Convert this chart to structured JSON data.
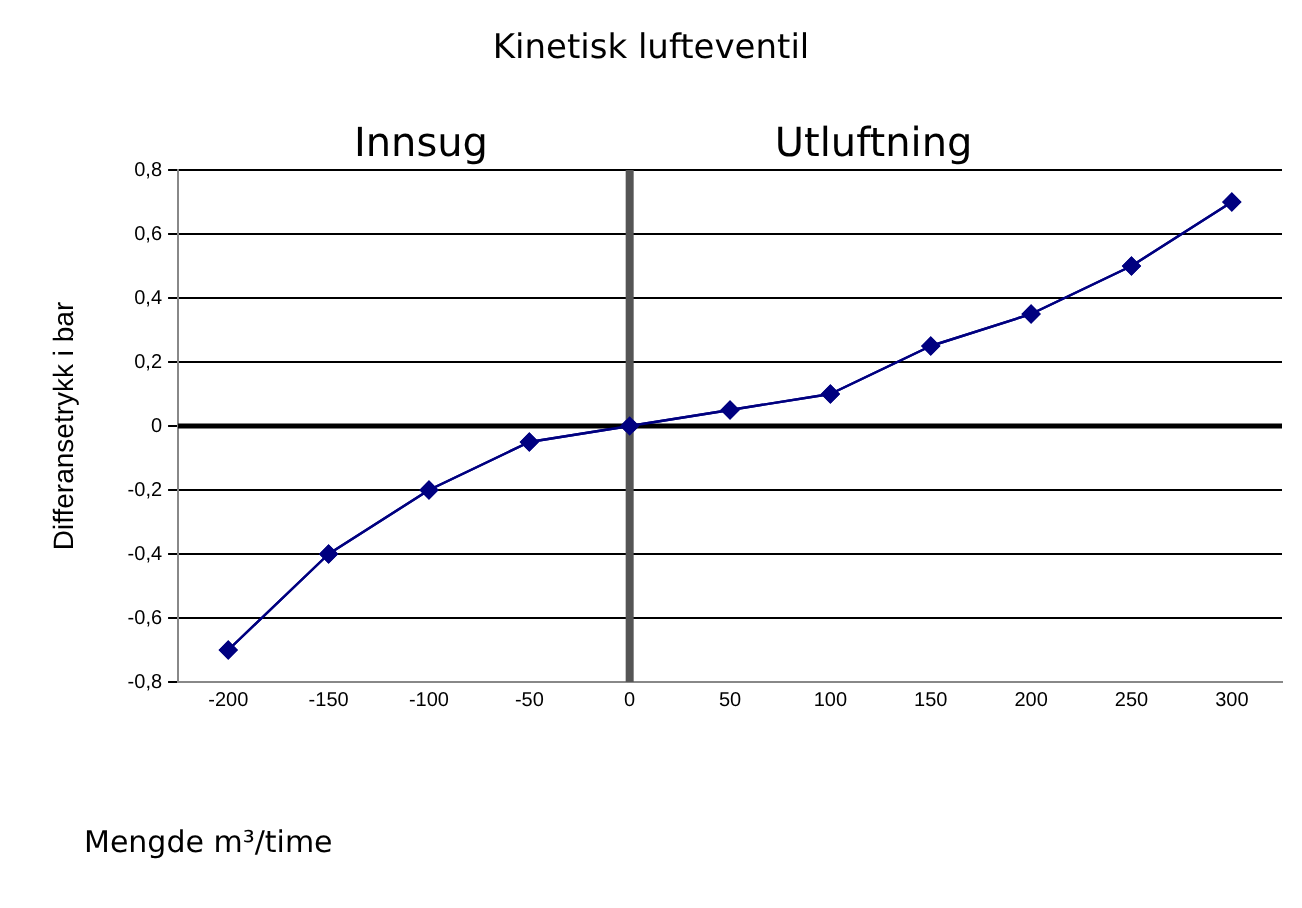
{
  "chart_data": {
    "type": "line",
    "title": "Kinetisk lufteventil",
    "xlabel": "Mengde m³/time",
    "ylabel": "Differansetrykk i bar",
    "x": [
      -200,
      -150,
      -100,
      -50,
      0,
      50,
      100,
      150,
      200,
      250,
      300
    ],
    "series": [
      {
        "color": "#000080",
        "values": [
          -0.7,
          -0.4,
          -0.2,
          -0.05,
          0,
          0.05,
          0.1,
          0.25,
          0.35,
          0.5,
          0.7
        ]
      }
    ],
    "xlim": [
      -225,
      325
    ],
    "xticks": [
      -200,
      -150,
      -100,
      -50,
      0,
      50,
      100,
      150,
      200,
      250,
      300
    ],
    "ylim": [
      -0.8,
      0.8
    ],
    "yticks": [
      {
        "value": -0.8,
        "label": "-0,8"
      },
      {
        "value": -0.6,
        "label": "-0,6"
      },
      {
        "value": -0.4,
        "label": "-0,4"
      },
      {
        "value": -0.2,
        "label": "-0,2"
      },
      {
        "value": 0,
        "label": "0"
      },
      {
        "value": 0.2,
        "label": "0,2"
      },
      {
        "value": 0.4,
        "label": "0,4"
      },
      {
        "value": 0.6,
        "label": "0,6"
      },
      {
        "value": 0.8,
        "label": "0,8"
      }
    ],
    "grid": "y",
    "marker": "diamond",
    "line_style": "solid",
    "ref_lines": [
      {
        "axis": "x",
        "value": 0,
        "color": "#555555"
      },
      {
        "axis": "y",
        "value": 0,
        "color": "#000000"
      }
    ],
    "annotations": [
      "Innsug",
      "Utluftning"
    ]
  }
}
